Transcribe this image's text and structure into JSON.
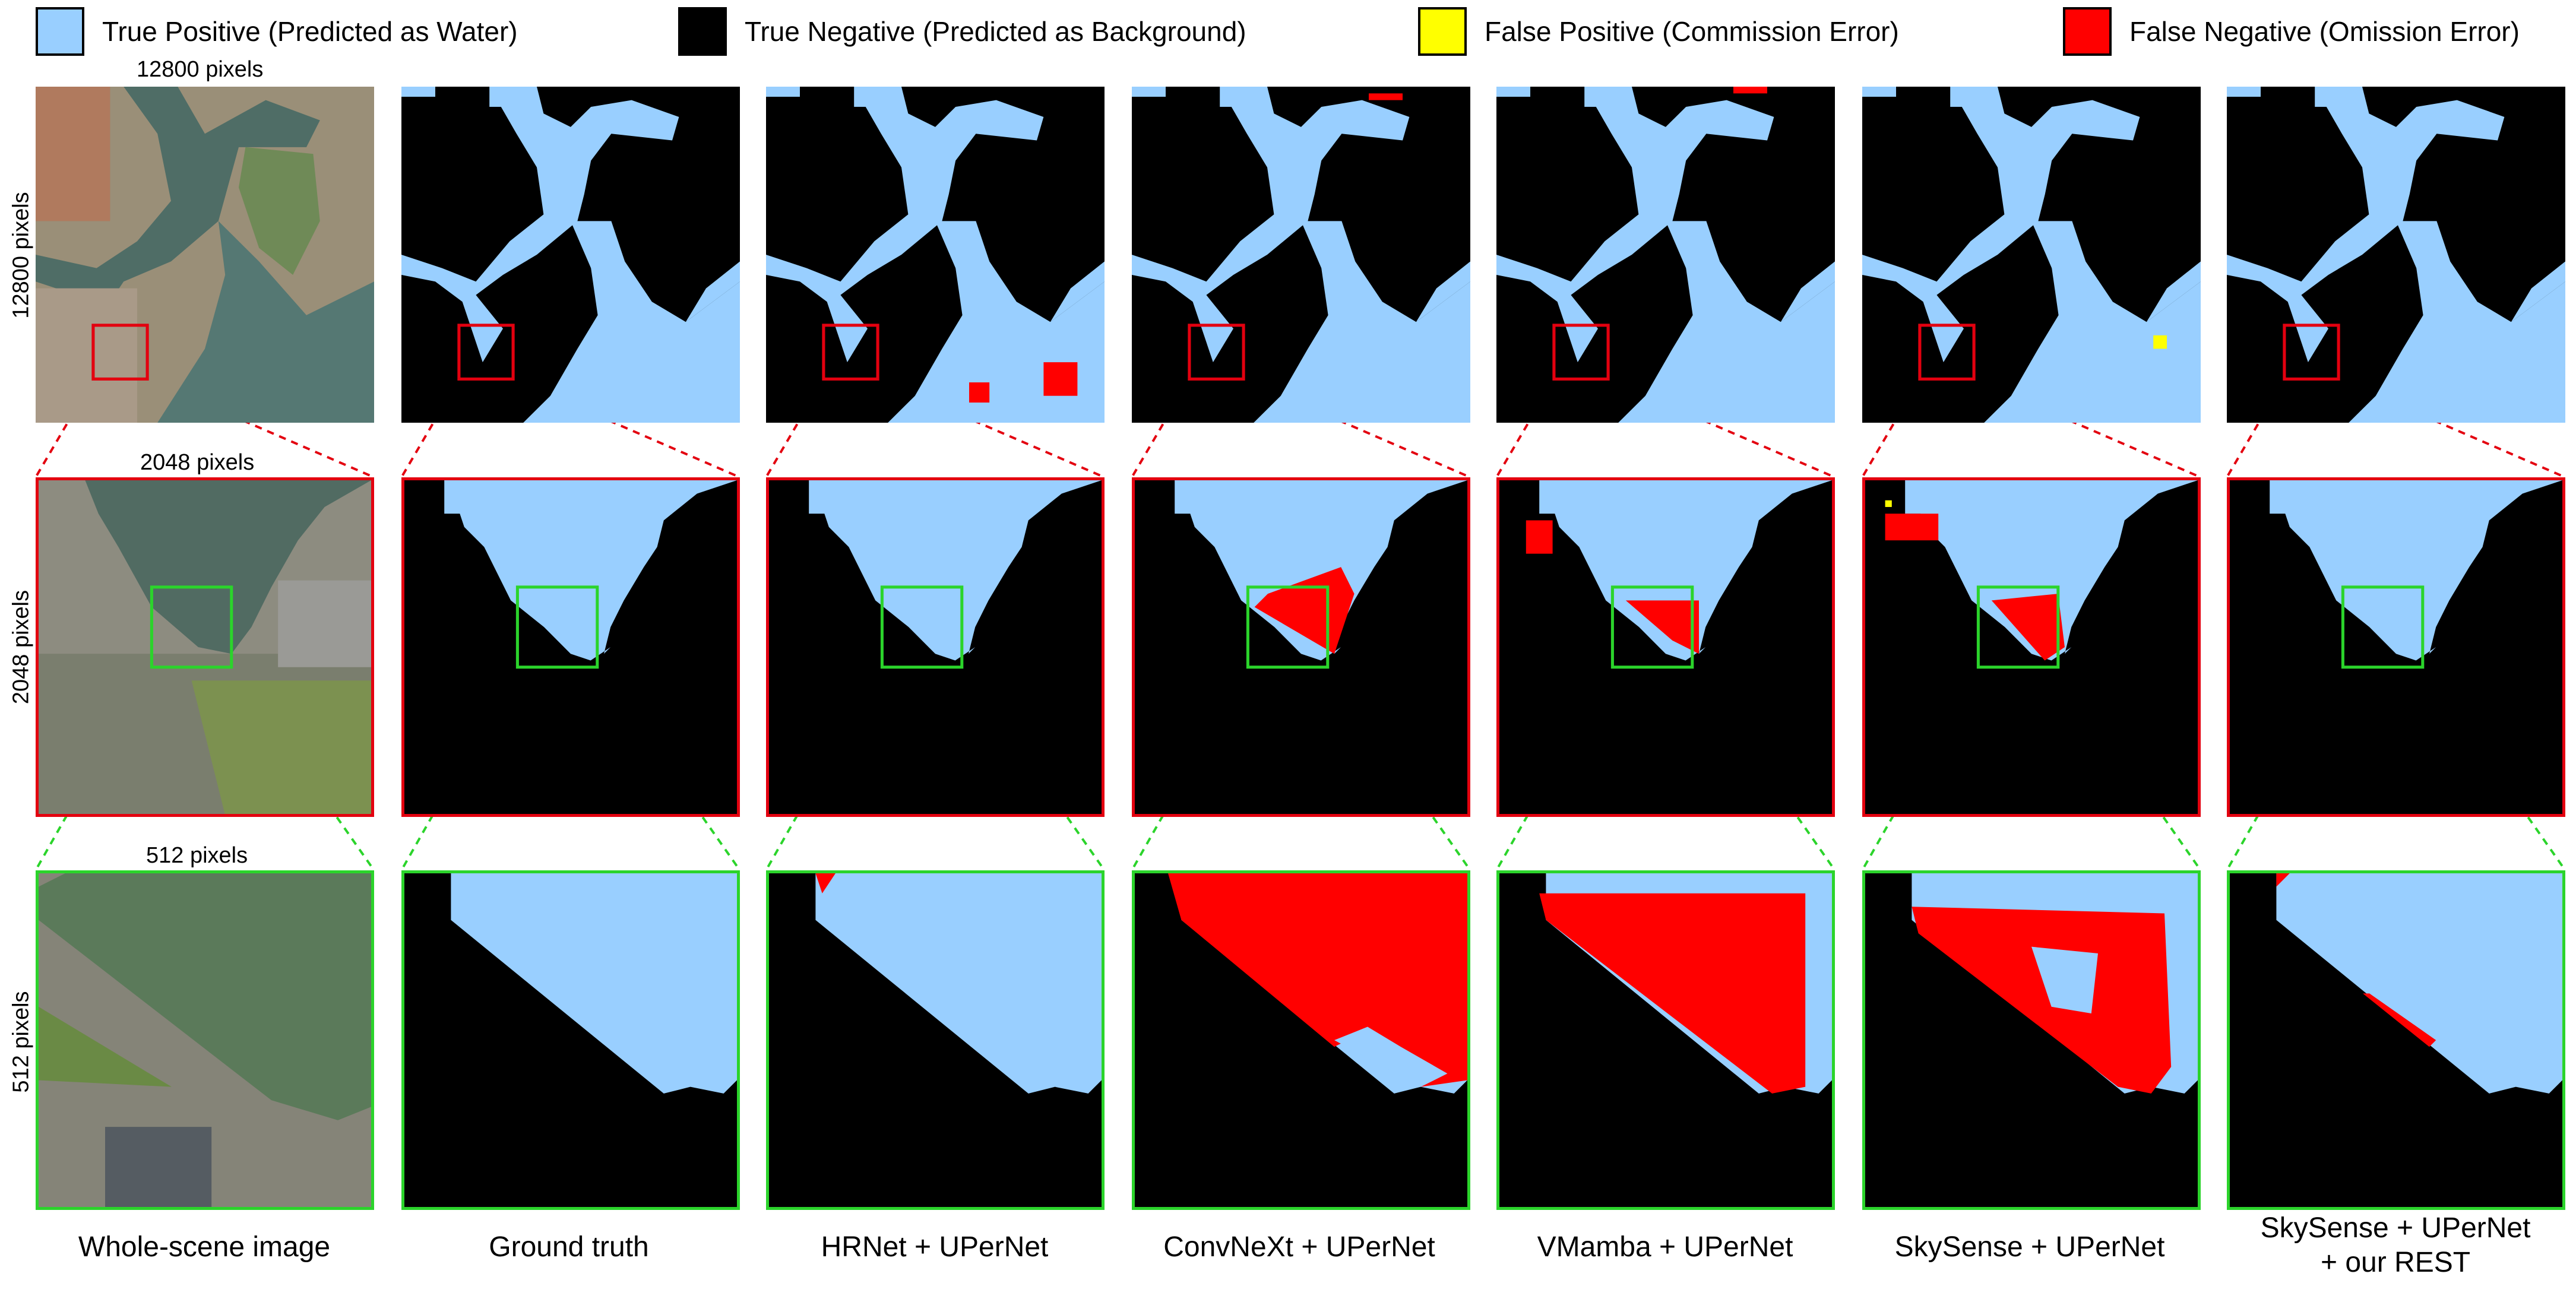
{
  "legend": [
    {
      "label": "True Positive (Predicted as Water)",
      "color": "#99cfff"
    },
    {
      "label": "True Negative (Predicted as Background)",
      "color": "#000000"
    },
    {
      "label": "False Positive (Commission Error)",
      "color": "#ffff00"
    },
    {
      "label": "False Negative (Omission Error)",
      "color": "#ff0000"
    }
  ],
  "scales": {
    "row1": "12800 pixels",
    "row2": "2048 pixels",
    "row3": "512 pixels"
  },
  "columns": [
    {
      "label": "Whole-scene image"
    },
    {
      "label": "Ground truth"
    },
    {
      "label": "HRNet + UPerNet"
    },
    {
      "label": "ConvNeXt + UPerNet"
    },
    {
      "label": "VMamba + UPerNet"
    },
    {
      "label": "SkySense + UPerNet"
    },
    {
      "label": "SkySense + UPerNet\n+ our REST"
    }
  ],
  "colors": {
    "water": "#99cfff",
    "background": "#000000",
    "false_positive": "#ffff00",
    "false_negative": "#ff0000",
    "zoom_red": "#e3000f",
    "zoom_green": "#2bd42b"
  }
}
